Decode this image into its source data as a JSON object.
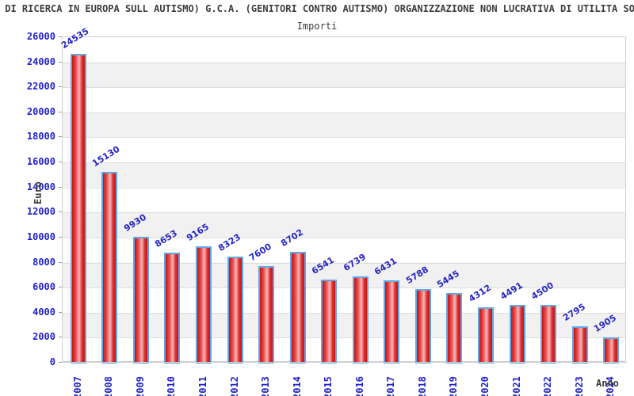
{
  "header": {
    "title": "NE DI RICERCA IN EUROPA SULL AUTISMO) G.C.A. (GENITORI CONTRO AUTISMO) ORGANIZZAZIONE NON LUCRATIVA DI UTILITA SOCI",
    "subtitle": "Importi"
  },
  "chart_data": {
    "type": "bar",
    "title": "Importi",
    "categories": [
      "2007",
      "2008",
      "2009",
      "2010",
      "2011",
      "2012",
      "2013",
      "2014",
      "2015",
      "2016",
      "2017",
      "2018",
      "2019",
      "2020",
      "2021",
      "2022",
      "2023",
      "2024"
    ],
    "values": [
      24535,
      15130,
      9930,
      8653,
      9165,
      8323,
      7600,
      8702,
      6541,
      6739,
      6431,
      5788,
      5445,
      4312,
      4491,
      4500,
      2795,
      1905
    ],
    "xlabel": "Anno",
    "ylabel": "Euro",
    "ylim": [
      0,
      26000
    ],
    "ytick_step": 2000,
    "grid": true,
    "legend_position": "none",
    "colors": {
      "bar_fill": "#cc1616",
      "bar_fill_highlight": "#f6b8b8",
      "bar_border": "#63a6e4",
      "axis_label_blue": "#2222cc",
      "value_label_blue": "#2626c4",
      "title_text": "#3d3d3d",
      "band_gray": "#f1f1f1",
      "gridline": "#dedede"
    }
  }
}
